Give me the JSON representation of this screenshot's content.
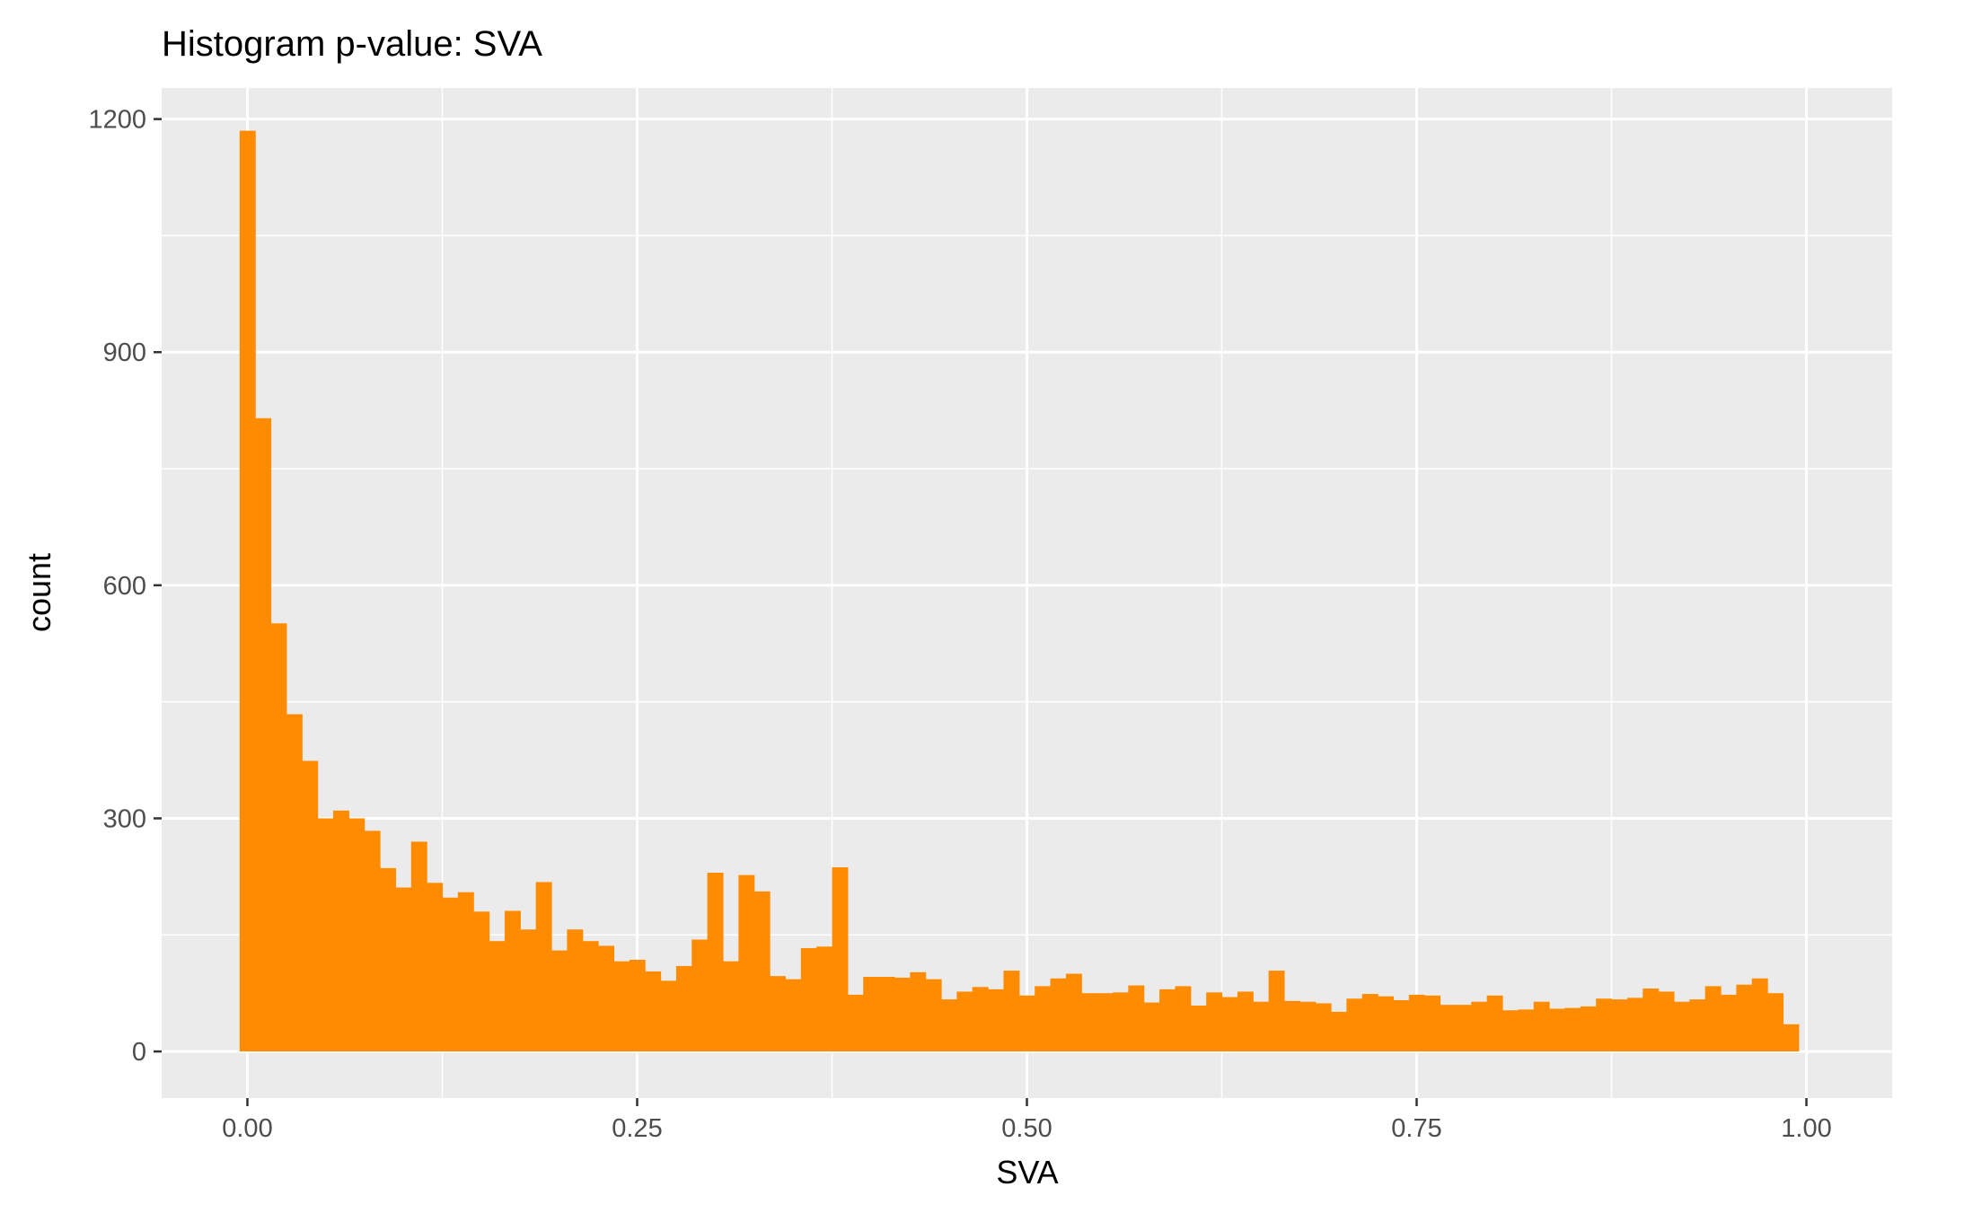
{
  "chart_data": {
    "type": "bar",
    "title": "Histogram p-value: SVA",
    "xlabel": "SVA",
    "ylabel": "count",
    "bin_width": 0.01,
    "x_start": -0.005,
    "xlim": [
      -0.055,
      1.055
    ],
    "ylim": [
      -60,
      1240
    ],
    "x_ticks": [
      {
        "value": 0,
        "label": "0.00"
      },
      {
        "value": 0.25,
        "label": "0.25"
      },
      {
        "value": 0.5,
        "label": "0.50"
      },
      {
        "value": 0.75,
        "label": "0.75"
      },
      {
        "value": 1,
        "label": "1.00"
      }
    ],
    "y_ticks": [
      {
        "value": 0,
        "label": "0"
      },
      {
        "value": 300,
        "label": "300"
      },
      {
        "value": 600,
        "label": "600"
      },
      {
        "value": 900,
        "label": "900"
      },
      {
        "value": 1200,
        "label": "1200"
      }
    ],
    "grid": true,
    "colors": {
      "bar": "#ff8c00",
      "panel": "#ebebeb",
      "grid": "#ffffff",
      "tick_label": "#4d4d4d",
      "tick_mark": "#333333"
    },
    "values": [
      1185,
      815,
      551,
      434,
      374,
      300,
      310,
      300,
      284,
      236,
      211,
      270,
      217,
      198,
      205,
      180,
      142,
      181,
      157,
      218,
      130,
      157,
      142,
      136,
      116,
      118,
      103,
      91,
      110,
      144,
      230,
      116,
      227,
      206,
      97,
      93,
      133,
      135,
      237,
      73,
      96,
      96,
      95,
      102,
      93,
      67,
      77,
      83,
      80,
      104,
      72,
      84,
      94,
      100,
      75,
      75,
      76,
      85,
      63,
      80,
      84,
      59,
      76,
      70,
      77,
      64,
      104,
      65,
      64,
      62,
      51,
      68,
      74,
      71,
      66,
      73,
      72,
      60,
      60,
      64,
      72,
      53,
      54,
      64,
      55,
      56,
      58,
      68,
      67,
      69,
      81,
      77,
      64,
      67,
      84,
      73,
      86,
      94,
      75,
      35
    ]
  }
}
